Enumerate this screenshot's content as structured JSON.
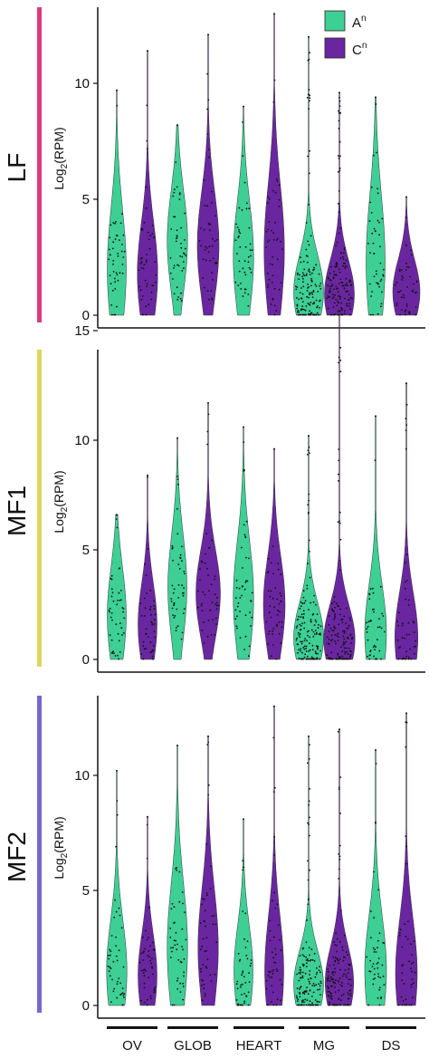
{
  "chart_data": {
    "type": "violin",
    "categories": [
      "OV",
      "GLOB",
      "HEART",
      "MG",
      "DS"
    ],
    "legend": {
      "position": "top-right",
      "entries": [
        {
          "label": "A",
          "sup": "n",
          "color": "#3ecf95"
        },
        {
          "label": "C",
          "sup": "n",
          "color": "#6a26a0"
        }
      ]
    },
    "ylabel_main": "Log",
    "ylabel_sub": "2",
    "ylabel_tail": "(RPM)",
    "panels": [
      {
        "label": "LF",
        "bar_color": "#e0397a",
        "ylim": [
          0,
          13
        ],
        "yticks": [
          0,
          5,
          10
        ],
        "ytick_labels": [
          "0",
          "5",
          "10"
        ],
        "series": [
          {
            "name": "A",
            "max": [
              9.7,
              8.2,
              9.0,
              12.0,
              9.4
            ],
            "center": [
              2.0,
              3.2,
              2.5,
              1.0,
              2.3
            ],
            "spread": [
              2.6,
              2.2,
              2.4,
              1.6,
              2.9
            ],
            "widths": [
              0.7,
              0.75,
              0.75,
              1.1,
              0.7
            ]
          },
          {
            "name": "C",
            "max": [
              11.4,
              12.1,
              13.0,
              9.6,
              5.1
            ],
            "center": [
              1.8,
              3.0,
              2.8,
              0.9,
              1.0
            ],
            "spread": [
              2.2,
              2.3,
              2.8,
              1.5,
              1.4
            ],
            "widths": [
              0.75,
              0.8,
              0.75,
              1.1,
              1.0
            ]
          }
        ]
      },
      {
        "label": "MF1",
        "bar_color": "#dcd75a",
        "ylim": [
          0,
          16.5
        ],
        "yticks": [
          0,
          5,
          10,
          15
        ],
        "ytick_labels": [
          "0",
          "5",
          "10",
          "15"
        ],
        "series": [
          {
            "name": "A",
            "max": [
              6.6,
              10.1,
              10.6,
              10.2,
              11.1
            ],
            "center": [
              2.0,
              3.3,
              2.8,
              1.0,
              1.2
            ],
            "spread": [
              2.2,
              2.4,
              2.6,
              1.6,
              2.2
            ],
            "widths": [
              0.7,
              0.7,
              0.75,
              1.1,
              0.8
            ]
          },
          {
            "name": "C",
            "max": [
              8.4,
              11.7,
              9.6,
              15.9,
              12.6
            ],
            "center": [
              1.6,
              3.0,
              2.5,
              0.9,
              1.0
            ],
            "spread": [
              1.9,
              2.0,
              2.2,
              1.6,
              2.0
            ],
            "widths": [
              0.7,
              0.9,
              0.8,
              1.15,
              0.85
            ]
          }
        ]
      },
      {
        "label": "MF2",
        "bar_color": "#7766d2",
        "ylim": [
          0,
          13.3
        ],
        "yticks": [
          0,
          5,
          10
        ],
        "ytick_labels": [
          "0",
          "5",
          "10"
        ],
        "series": [
          {
            "name": "A",
            "max": [
              10.2,
              11.3,
              8.1,
              11.7,
              11.1
            ],
            "center": [
              1.5,
              2.5,
              1.5,
              0.9,
              1.5
            ],
            "spread": [
              2.2,
              2.8,
              2.0,
              1.5,
              2.4
            ],
            "widths": [
              0.75,
              0.75,
              0.7,
              1.1,
              0.8
            ]
          },
          {
            "name": "C",
            "max": [
              8.2,
              11.7,
              13.0,
              12.0,
              12.7
            ],
            "center": [
              1.3,
              2.5,
              1.5,
              1.0,
              1.4
            ],
            "spread": [
              1.8,
              2.6,
              2.4,
              1.6,
              2.4
            ],
            "widths": [
              0.7,
              0.75,
              0.7,
              1.05,
              0.8
            ]
          }
        ]
      }
    ]
  }
}
